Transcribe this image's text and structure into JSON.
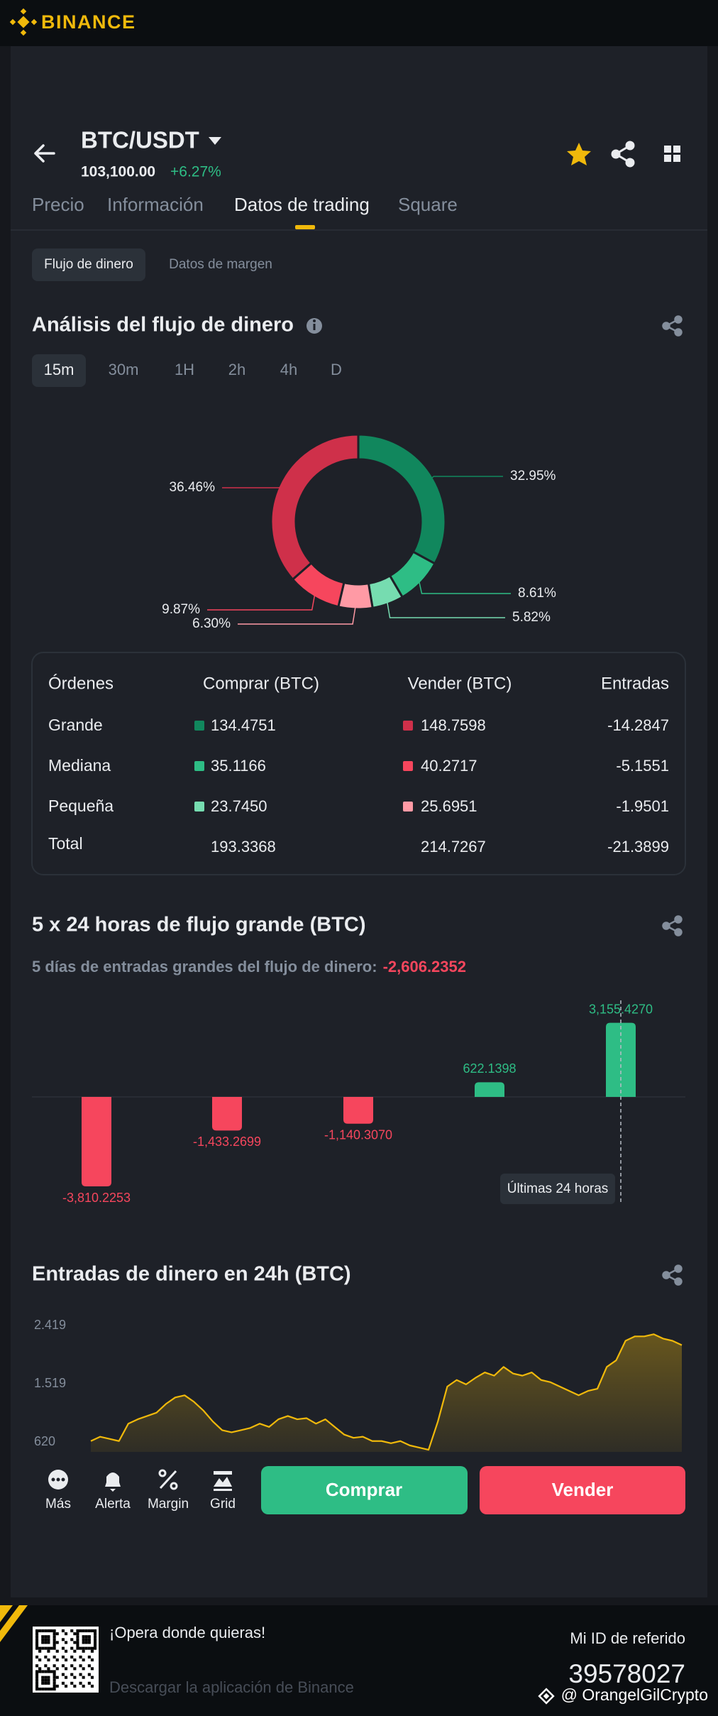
{
  "header": {
    "brand": "BINANCE"
  },
  "pair": {
    "symbol": "BTC/USDT",
    "price": "103,100.00",
    "change": "+6.27%"
  },
  "tabs": [
    "Precio",
    "Información",
    "Datos de trading",
    "Square"
  ],
  "subtabs": [
    "Flujo de dinero",
    "Datos de margen"
  ],
  "money_flow": {
    "title": "Análisis del flujo de dinero",
    "intervals": [
      "15m",
      "30m",
      "1H",
      "2h",
      "4h",
      "D"
    ],
    "chart_data": {
      "type": "pie",
      "values": [
        32.95,
        8.61,
        5.82,
        6.3,
        9.87,
        36.46
      ],
      "value_labels": [
        "32.95%",
        "8.61%",
        "5.82%",
        "6.30%",
        "9.87%",
        "36.46%"
      ],
      "colors": [
        "#11875d",
        "#2ebd85",
        "#76dcb0",
        "#ff9aa5",
        "#f6465d",
        "#cf304a"
      ]
    }
  },
  "orders_table": {
    "header": [
      "Órdenes",
      "Comprar (BTC)",
      "Vender (BTC)",
      "Entradas"
    ],
    "rows": [
      [
        "Grande",
        "134.4751",
        "148.7598",
        "-14.2847"
      ],
      [
        "Mediana",
        "35.1166",
        "40.2717",
        "-5.1551"
      ],
      [
        "Pequeña",
        "23.7450",
        "25.6951",
        "-1.9501"
      ],
      [
        "Total",
        "193.3368",
        "214.7267",
        "-21.3899"
      ]
    ]
  },
  "large_flow": {
    "title": "5 x 24 horas de flujo grande (BTC)",
    "subtitle": "5 días de entradas grandes del flujo de dinero:",
    "total": "-2,606.2352",
    "chart_data": {
      "type": "bar",
      "values": [
        -3810.2253,
        -1433.2699,
        -1140.307,
        622.1398,
        3155.427
      ],
      "value_labels": [
        "-3,810.2253",
        "-1,433.2699",
        "-1,140.3070",
        "622.1398",
        "3,155.4270"
      ],
      "annotation": "Últimas 24 horas",
      "positive_color": "#2ebd85",
      "negative_color": "#f6465d"
    }
  },
  "inflow_24h": {
    "title": "Entradas de dinero en 24h (BTC)",
    "chart_data": {
      "type": "line",
      "color": "#f0b90b",
      "ylim": [
        470,
        2540
      ],
      "yticks": [
        {
          "value": 2419,
          "label": "2.419"
        },
        {
          "value": 1519,
          "label": "1.519"
        },
        620
      ],
      "values": [
        637,
        704,
        670,
        637,
        906,
        973,
        1024,
        1074,
        1209,
        1310,
        1343,
        1242,
        1108,
        940,
        805,
        772,
        805,
        839,
        906,
        855,
        973,
        1024,
        973,
        990,
        906,
        973,
        855,
        738,
        687,
        704,
        637,
        637,
        603,
        637,
        570,
        536,
        502,
        940,
        1478,
        1579,
        1512,
        1612,
        1696,
        1646,
        1781,
        1680,
        1646,
        1696,
        1579,
        1545,
        1478,
        1411,
        1343,
        1411,
        1444,
        1781,
        1882,
        2184,
        2252,
        2252,
        2285,
        2218,
        2184,
        2117
      ]
    }
  },
  "toolbar": {
    "items": [
      "Más",
      "Alerta",
      "Margin",
      "Grid"
    ],
    "buy": "Comprar",
    "sell": "Vender"
  },
  "footer": {
    "tagline": "¡Opera donde quieras!",
    "download": "Descargar la aplicación de Binance",
    "referral_label": "Mi ID de referido",
    "referral_id": "39578027",
    "watermark": "@ OrangelGilCrypto"
  }
}
